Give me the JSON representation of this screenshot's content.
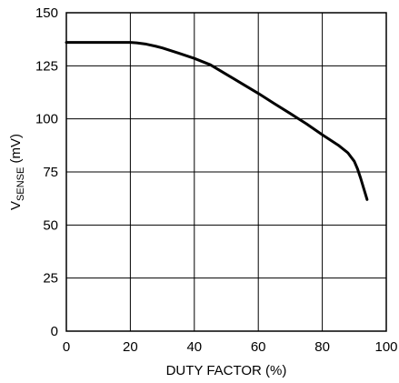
{
  "chart_data": {
    "type": "line",
    "title": "",
    "xlabel": "DUTY FACTOR (%)",
    "ylabel_main": "V",
    "ylabel_sub": "SENSE",
    "ylabel_suffix": " (mV)",
    "xlim": [
      0,
      100
    ],
    "ylim": [
      0,
      150
    ],
    "xticks": [
      0,
      20,
      40,
      60,
      80,
      100
    ],
    "yticks": [
      0,
      25,
      50,
      75,
      100,
      125,
      150
    ],
    "xtick_labels": [
      "0",
      "20",
      "40",
      "60",
      "80",
      "100"
    ],
    "ytick_labels": [
      "0",
      "25",
      "50",
      "75",
      "100",
      "125",
      "150"
    ],
    "grid": true,
    "series": [
      {
        "x": [
          0,
          5,
          10,
          15,
          20,
          22,
          25,
          28,
          30,
          35,
          40,
          45,
          50,
          55,
          60,
          65,
          70,
          75,
          80,
          85,
          88,
          90,
          91,
          92,
          93,
          94
        ],
        "y": [
          136,
          136,
          136,
          136,
          136,
          135.8,
          135.2,
          134.2,
          133.4,
          131,
          128.5,
          125.5,
          121,
          116.5,
          112,
          107.2,
          102.5,
          97.7,
          92.5,
          87.6,
          84,
          80,
          76.5,
          72,
          67,
          62
        ],
        "color": "#000000"
      }
    ]
  }
}
